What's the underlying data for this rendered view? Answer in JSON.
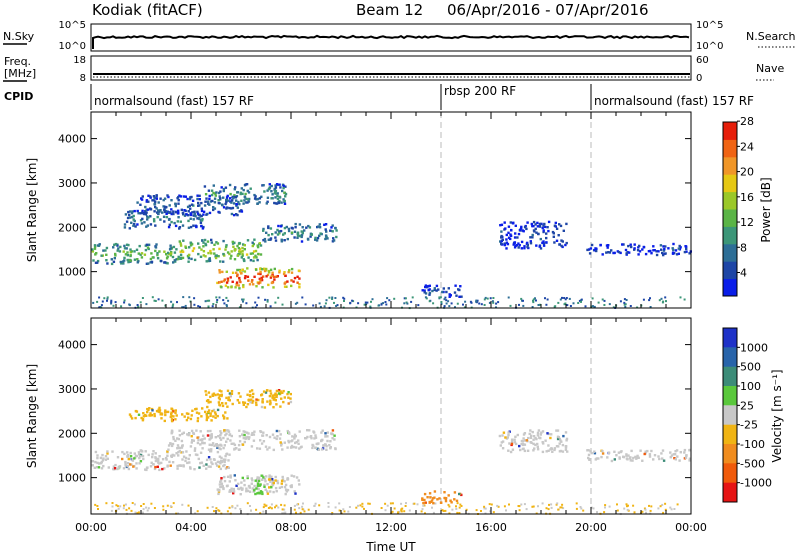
{
  "header": {
    "station": "Kodiak (fitACF)",
    "beam": "Beam 12",
    "date_range": "06/Apr/2016 - 07/Apr/2016"
  },
  "noise_panel": {
    "left_label": "N.Sky",
    "right_label": "N.Search",
    "left_ticks": [
      "10^5",
      "10^0"
    ],
    "right_ticks": [
      "10^5",
      "10^0"
    ]
  },
  "freq_panel": {
    "left_label_1": "Freq.",
    "left_label_2": "[MHz]",
    "right_label": "Nave",
    "left_ticks": [
      "18",
      "8"
    ],
    "right_ticks": [
      "60",
      "0"
    ]
  },
  "cpid": {
    "label": "CPID",
    "segments": [
      {
        "label": "normalsound (fast) 157 RF",
        "start_hour": 0
      },
      {
        "label": "rbsp 200 RF",
        "start_hour": 14
      },
      {
        "label": "normalsound (fast) 157 RF",
        "start_hour": 20
      }
    ]
  },
  "chart_data": [
    {
      "type": "heatmap",
      "quantity": "Power",
      "xlabel": "Time UT",
      "ylabel": "Slant Range [km]",
      "xlim_hours": [
        0,
        24
      ],
      "ylim_km": [
        180,
        4600
      ],
      "y_ticks": [
        1000,
        2000,
        3000,
        4000
      ],
      "y_tick_labels": [
        "1000",
        "2000",
        "3000",
        "4000"
      ],
      "colorbar": {
        "label": "Power [dB]",
        "tick_labels": [
          "4",
          "8",
          "12",
          "16",
          "20",
          "24",
          "28"
        ],
        "colors": [
          "#0a1ee8",
          "#1e46a6",
          "#2d6e96",
          "#3c9678",
          "#5ab446",
          "#9bc828",
          "#e6c814",
          "#f09628",
          "#f06414",
          "#e61e0a"
        ]
      },
      "regions": [
        {
          "t0": 0.0,
          "t1": 3.5,
          "r0": 1200,
          "r1": 1650,
          "level": 0.45
        },
        {
          "t0": 3.5,
          "t1": 6.8,
          "r0": 1250,
          "r1": 1750,
          "level": 0.55
        },
        {
          "t0": 6.8,
          "t1": 9.8,
          "r0": 1700,
          "r1": 2100,
          "level": 0.3
        },
        {
          "t0": 1.3,
          "t1": 4.5,
          "r0": 2000,
          "r1": 2400,
          "level": 0.25
        },
        {
          "t0": 4.5,
          "t1": 7.8,
          "r0": 2550,
          "r1": 3000,
          "level": 0.3
        },
        {
          "t0": 1.8,
          "t1": 6.0,
          "r0": 2300,
          "r1": 2750,
          "level": 0.2
        },
        {
          "t0": 5.0,
          "t1": 8.3,
          "r0": 650,
          "r1": 1100,
          "level": 0.95
        },
        {
          "t0": 13.2,
          "t1": 14.8,
          "r0": 450,
          "r1": 720,
          "level": 0.15
        },
        {
          "t0": 16.3,
          "t1": 19.0,
          "r0": 1550,
          "r1": 2150,
          "level": 0.1
        },
        {
          "t0": 19.8,
          "t1": 24.0,
          "r0": 1400,
          "r1": 1650,
          "level": 0.12
        }
      ]
    },
    {
      "type": "heatmap",
      "quantity": "Velocity",
      "xlabel": "Time UT",
      "ylabel": "Slant Range [km]",
      "xlim_hours": [
        0,
        24
      ],
      "ylim_km": [
        180,
        4600
      ],
      "x_tick_labels": [
        "00:00",
        "04:00",
        "08:00",
        "12:00",
        "16:00",
        "20:00",
        "00:00"
      ],
      "y_ticks": [
        1000,
        2000,
        3000,
        4000
      ],
      "y_tick_labels": [
        "1000",
        "2000",
        "3000",
        "4000"
      ],
      "colorbar": {
        "label": "Velocity [m s⁻¹]",
        "tick_labels": [
          "1000",
          "500",
          "100",
          "25",
          "-25",
          "-100",
          "-500",
          "-1000"
        ],
        "colors": [
          "#1e32c8",
          "#2864aa",
          "#3c8c78",
          "#5ac83c",
          "#c8c8c8",
          "#f0b414",
          "#f08c1e",
          "#f05a0a",
          "#e61414"
        ]
      },
      "regions": [
        {
          "t0": 0.0,
          "t1": 5.5,
          "r0": 1200,
          "r1": 1650,
          "color": "#c8c8c8"
        },
        {
          "t0": 3.0,
          "t1": 9.8,
          "r0": 1650,
          "r1": 2100,
          "color": "#c8c8c8"
        },
        {
          "t0": 5.0,
          "t1": 8.3,
          "r0": 650,
          "r1": 1100,
          "color": "#c8c8c8"
        },
        {
          "t0": 6.4,
          "t1": 6.9,
          "r0": 650,
          "r1": 1100,
          "color": "#5ac83c"
        },
        {
          "t0": 7.0,
          "t1": 7.6,
          "r0": 800,
          "r1": 1000,
          "color": "#f0b414"
        },
        {
          "t0": 1.5,
          "t1": 5.5,
          "r0": 2300,
          "r1": 2600,
          "color": "#f0b414"
        },
        {
          "t0": 4.5,
          "t1": 8.0,
          "r0": 2600,
          "r1": 3000,
          "color": "#f0b414"
        },
        {
          "t0": 13.2,
          "t1": 14.8,
          "r0": 450,
          "r1": 720,
          "color": "#f08c1e"
        },
        {
          "t0": 16.3,
          "t1": 19.0,
          "r0": 1600,
          "r1": 2100,
          "color": "#c8c8c8"
        },
        {
          "t0": 19.8,
          "t1": 24.0,
          "r0": 1400,
          "r1": 1650,
          "color": "#c8c8c8"
        }
      ]
    }
  ]
}
